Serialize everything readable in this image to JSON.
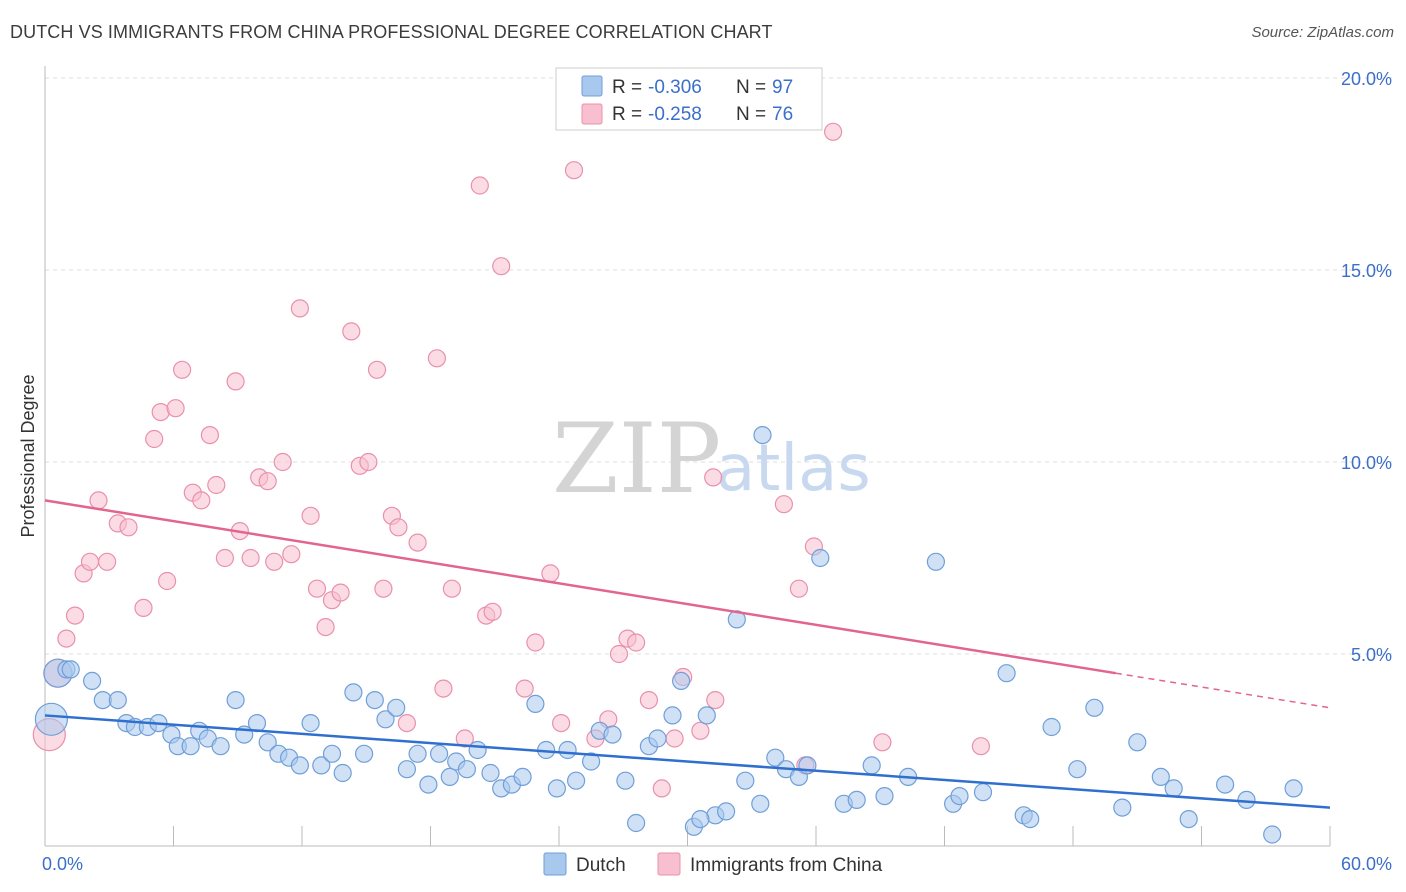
{
  "header": {
    "title": "DUTCH VS IMMIGRANTS FROM CHINA PROFESSIONAL DEGREE CORRELATION CHART",
    "source": "Source: ZipAtlas.com"
  },
  "watermark": {
    "zip": "ZIP",
    "atlas": "atlas"
  },
  "colors": {
    "blue_fill": "#a9c8ee",
    "blue_stroke": "#6f9fd8",
    "blue_line": "#2f6fce",
    "pink_fill": "#f7bfd0",
    "pink_stroke": "#e990ad",
    "pink_line": "#e2648f",
    "grid": "#dddddd",
    "tick_text": "#3b6fc9"
  },
  "chart_data": {
    "type": "scatter",
    "title": "DUTCH VS IMMIGRANTS FROM CHINA PROFESSIONAL DEGREE CORRELATION CHART",
    "xlabel": "",
    "ylabel": "Professional Degree",
    "xlim": [
      0,
      60
    ],
    "ylim": [
      0,
      20
    ],
    "x_tick_labels": [
      "0.0%",
      "60.0%"
    ],
    "y_ticks": [
      5,
      10,
      15,
      20
    ],
    "y_tick_labels": [
      "5.0%",
      "10.0%",
      "15.0%",
      "20.0%"
    ],
    "grid": true,
    "legend": {
      "position": "top-center",
      "entries": [
        {
          "name": "Dutch",
          "r_label": "R = ",
          "r": "-0.306",
          "n_label": "N = ",
          "n": "97"
        },
        {
          "name": "Immigrants from China",
          "r_label": "R = ",
          "r": "-0.258",
          "n_label": "N = ",
          "n": "76"
        }
      ]
    },
    "series": [
      {
        "name": "Dutch",
        "color": "blue",
        "trend": {
          "x": [
            0,
            60
          ],
          "y": [
            3.4,
            1.0
          ]
        },
        "points": [
          [
            0.3,
            3.3
          ],
          [
            0.6,
            4.5
          ],
          [
            1.0,
            4.6
          ],
          [
            1.2,
            4.6
          ],
          [
            2.2,
            4.3
          ],
          [
            2.7,
            3.8
          ],
          [
            3.4,
            3.8
          ],
          [
            3.8,
            3.2
          ],
          [
            4.2,
            3.1
          ],
          [
            4.8,
            3.1
          ],
          [
            5.3,
            3.2
          ],
          [
            5.9,
            2.9
          ],
          [
            6.2,
            2.6
          ],
          [
            6.8,
            2.6
          ],
          [
            7.2,
            3.0
          ],
          [
            7.6,
            2.8
          ],
          [
            8.2,
            2.6
          ],
          [
            8.9,
            3.8
          ],
          [
            9.3,
            2.9
          ],
          [
            9.9,
            3.2
          ],
          [
            10.4,
            2.7
          ],
          [
            10.9,
            2.4
          ],
          [
            11.4,
            2.3
          ],
          [
            11.9,
            2.1
          ],
          [
            12.4,
            3.2
          ],
          [
            12.9,
            2.1
          ],
          [
            13.4,
            2.4
          ],
          [
            13.9,
            1.9
          ],
          [
            14.4,
            4.0
          ],
          [
            14.9,
            2.4
          ],
          [
            15.4,
            3.8
          ],
          [
            15.9,
            3.3
          ],
          [
            16.4,
            3.6
          ],
          [
            16.9,
            2.0
          ],
          [
            17.4,
            2.4
          ],
          [
            17.9,
            1.6
          ],
          [
            18.4,
            2.4
          ],
          [
            18.9,
            1.8
          ],
          [
            19.2,
            2.2
          ],
          [
            19.7,
            2.0
          ],
          [
            20.2,
            2.5
          ],
          [
            20.8,
            1.9
          ],
          [
            21.3,
            1.5
          ],
          [
            21.8,
            1.6
          ],
          [
            22.3,
            1.8
          ],
          [
            22.9,
            3.7
          ],
          [
            23.4,
            2.5
          ],
          [
            23.9,
            1.5
          ],
          [
            24.4,
            2.5
          ],
          [
            24.8,
            1.7
          ],
          [
            25.5,
            2.2
          ],
          [
            25.9,
            3.0
          ],
          [
            26.5,
            2.9
          ],
          [
            27.1,
            1.7
          ],
          [
            27.6,
            0.6
          ],
          [
            28.2,
            2.6
          ],
          [
            28.6,
            2.8
          ],
          [
            29.3,
            3.4
          ],
          [
            29.7,
            4.3
          ],
          [
            30.3,
            0.5
          ],
          [
            30.9,
            3.4
          ],
          [
            31.3,
            0.8
          ],
          [
            31.8,
            0.9
          ],
          [
            32.3,
            5.9
          ],
          [
            32.7,
            1.7
          ],
          [
            33.4,
            1.1
          ],
          [
            34.1,
            2.3
          ],
          [
            34.6,
            2.0
          ],
          [
            35.2,
            1.8
          ],
          [
            35.6,
            2.1
          ],
          [
            36.2,
            7.5
          ],
          [
            37.3,
            1.1
          ],
          [
            37.9,
            1.2
          ],
          [
            38.6,
            2.1
          ],
          [
            39.2,
            1.3
          ],
          [
            40.3,
            1.8
          ],
          [
            41.6,
            7.4
          ],
          [
            42.4,
            1.1
          ],
          [
            42.7,
            1.3
          ],
          [
            43.8,
            1.4
          ],
          [
            44.9,
            4.5
          ],
          [
            45.7,
            0.8
          ],
          [
            46.0,
            0.7
          ],
          [
            47.0,
            3.1
          ],
          [
            48.2,
            2.0
          ],
          [
            49.0,
            3.6
          ],
          [
            50.3,
            1.0
          ],
          [
            51.0,
            2.7
          ],
          [
            52.1,
            1.8
          ],
          [
            52.7,
            1.5
          ],
          [
            53.4,
            0.7
          ],
          [
            55.1,
            1.6
          ],
          [
            56.1,
            1.2
          ],
          [
            57.3,
            0.3
          ],
          [
            58.3,
            1.5
          ],
          [
            30.6,
            0.7
          ],
          [
            33.5,
            10.7
          ]
        ]
      },
      {
        "name": "Immigrants from China",
        "color": "pink",
        "trend": {
          "x": [
            0,
            50
          ],
          "y": [
            9.0,
            4.5
          ],
          "dashed_extension": {
            "x": [
              50,
              60
            ],
            "y": [
              4.5,
              3.6
            ]
          }
        },
        "points": [
          [
            0.2,
            2.9
          ],
          [
            0.6,
            4.5
          ],
          [
            1.0,
            5.4
          ],
          [
            1.4,
            6.0
          ],
          [
            1.8,
            7.1
          ],
          [
            2.1,
            7.4
          ],
          [
            2.5,
            9.0
          ],
          [
            2.9,
            7.4
          ],
          [
            3.4,
            8.4
          ],
          [
            3.9,
            8.3
          ],
          [
            4.6,
            6.2
          ],
          [
            5.1,
            10.6
          ],
          [
            5.4,
            11.3
          ],
          [
            5.7,
            6.9
          ],
          [
            6.1,
            11.4
          ],
          [
            6.4,
            12.4
          ],
          [
            6.9,
            9.2
          ],
          [
            7.3,
            9.0
          ],
          [
            7.7,
            10.7
          ],
          [
            8.0,
            9.4
          ],
          [
            8.4,
            7.5
          ],
          [
            8.9,
            12.1
          ],
          [
            9.1,
            8.2
          ],
          [
            9.6,
            7.5
          ],
          [
            10.0,
            9.6
          ],
          [
            10.4,
            9.5
          ],
          [
            10.7,
            7.4
          ],
          [
            11.1,
            10.0
          ],
          [
            11.5,
            7.6
          ],
          [
            11.9,
            14.0
          ],
          [
            12.4,
            8.6
          ],
          [
            12.7,
            6.7
          ],
          [
            13.1,
            5.7
          ],
          [
            13.4,
            6.4
          ],
          [
            13.8,
            6.6
          ],
          [
            14.3,
            13.4
          ],
          [
            14.7,
            9.9
          ],
          [
            15.1,
            10.0
          ],
          [
            15.5,
            12.4
          ],
          [
            15.8,
            6.7
          ],
          [
            16.2,
            8.6
          ],
          [
            16.5,
            8.3
          ],
          [
            16.9,
            3.2
          ],
          [
            17.4,
            7.9
          ],
          [
            18.3,
            12.7
          ],
          [
            18.6,
            4.1
          ],
          [
            19.0,
            6.7
          ],
          [
            19.6,
            2.8
          ],
          [
            20.3,
            17.2
          ],
          [
            20.6,
            6.0
          ],
          [
            20.9,
            6.1
          ],
          [
            21.3,
            15.1
          ],
          [
            22.4,
            4.1
          ],
          [
            22.9,
            5.3
          ],
          [
            23.6,
            7.1
          ],
          [
            24.1,
            3.2
          ],
          [
            24.7,
            17.6
          ],
          [
            25.7,
            2.8
          ],
          [
            26.3,
            3.3
          ],
          [
            26.8,
            5.0
          ],
          [
            27.2,
            5.4
          ],
          [
            27.6,
            5.3
          ],
          [
            28.2,
            3.8
          ],
          [
            28.8,
            1.5
          ],
          [
            29.4,
            2.8
          ],
          [
            29.8,
            4.4
          ],
          [
            30.6,
            3.0
          ],
          [
            31.3,
            3.8
          ],
          [
            35.2,
            6.7
          ],
          [
            35.5,
            2.1
          ],
          [
            36.8,
            18.6
          ],
          [
            39.1,
            2.7
          ],
          [
            43.7,
            2.6
          ],
          [
            35.9,
            7.8
          ],
          [
            34.5,
            8.9
          ],
          [
            31.2,
            9.6
          ]
        ]
      }
    ]
  }
}
